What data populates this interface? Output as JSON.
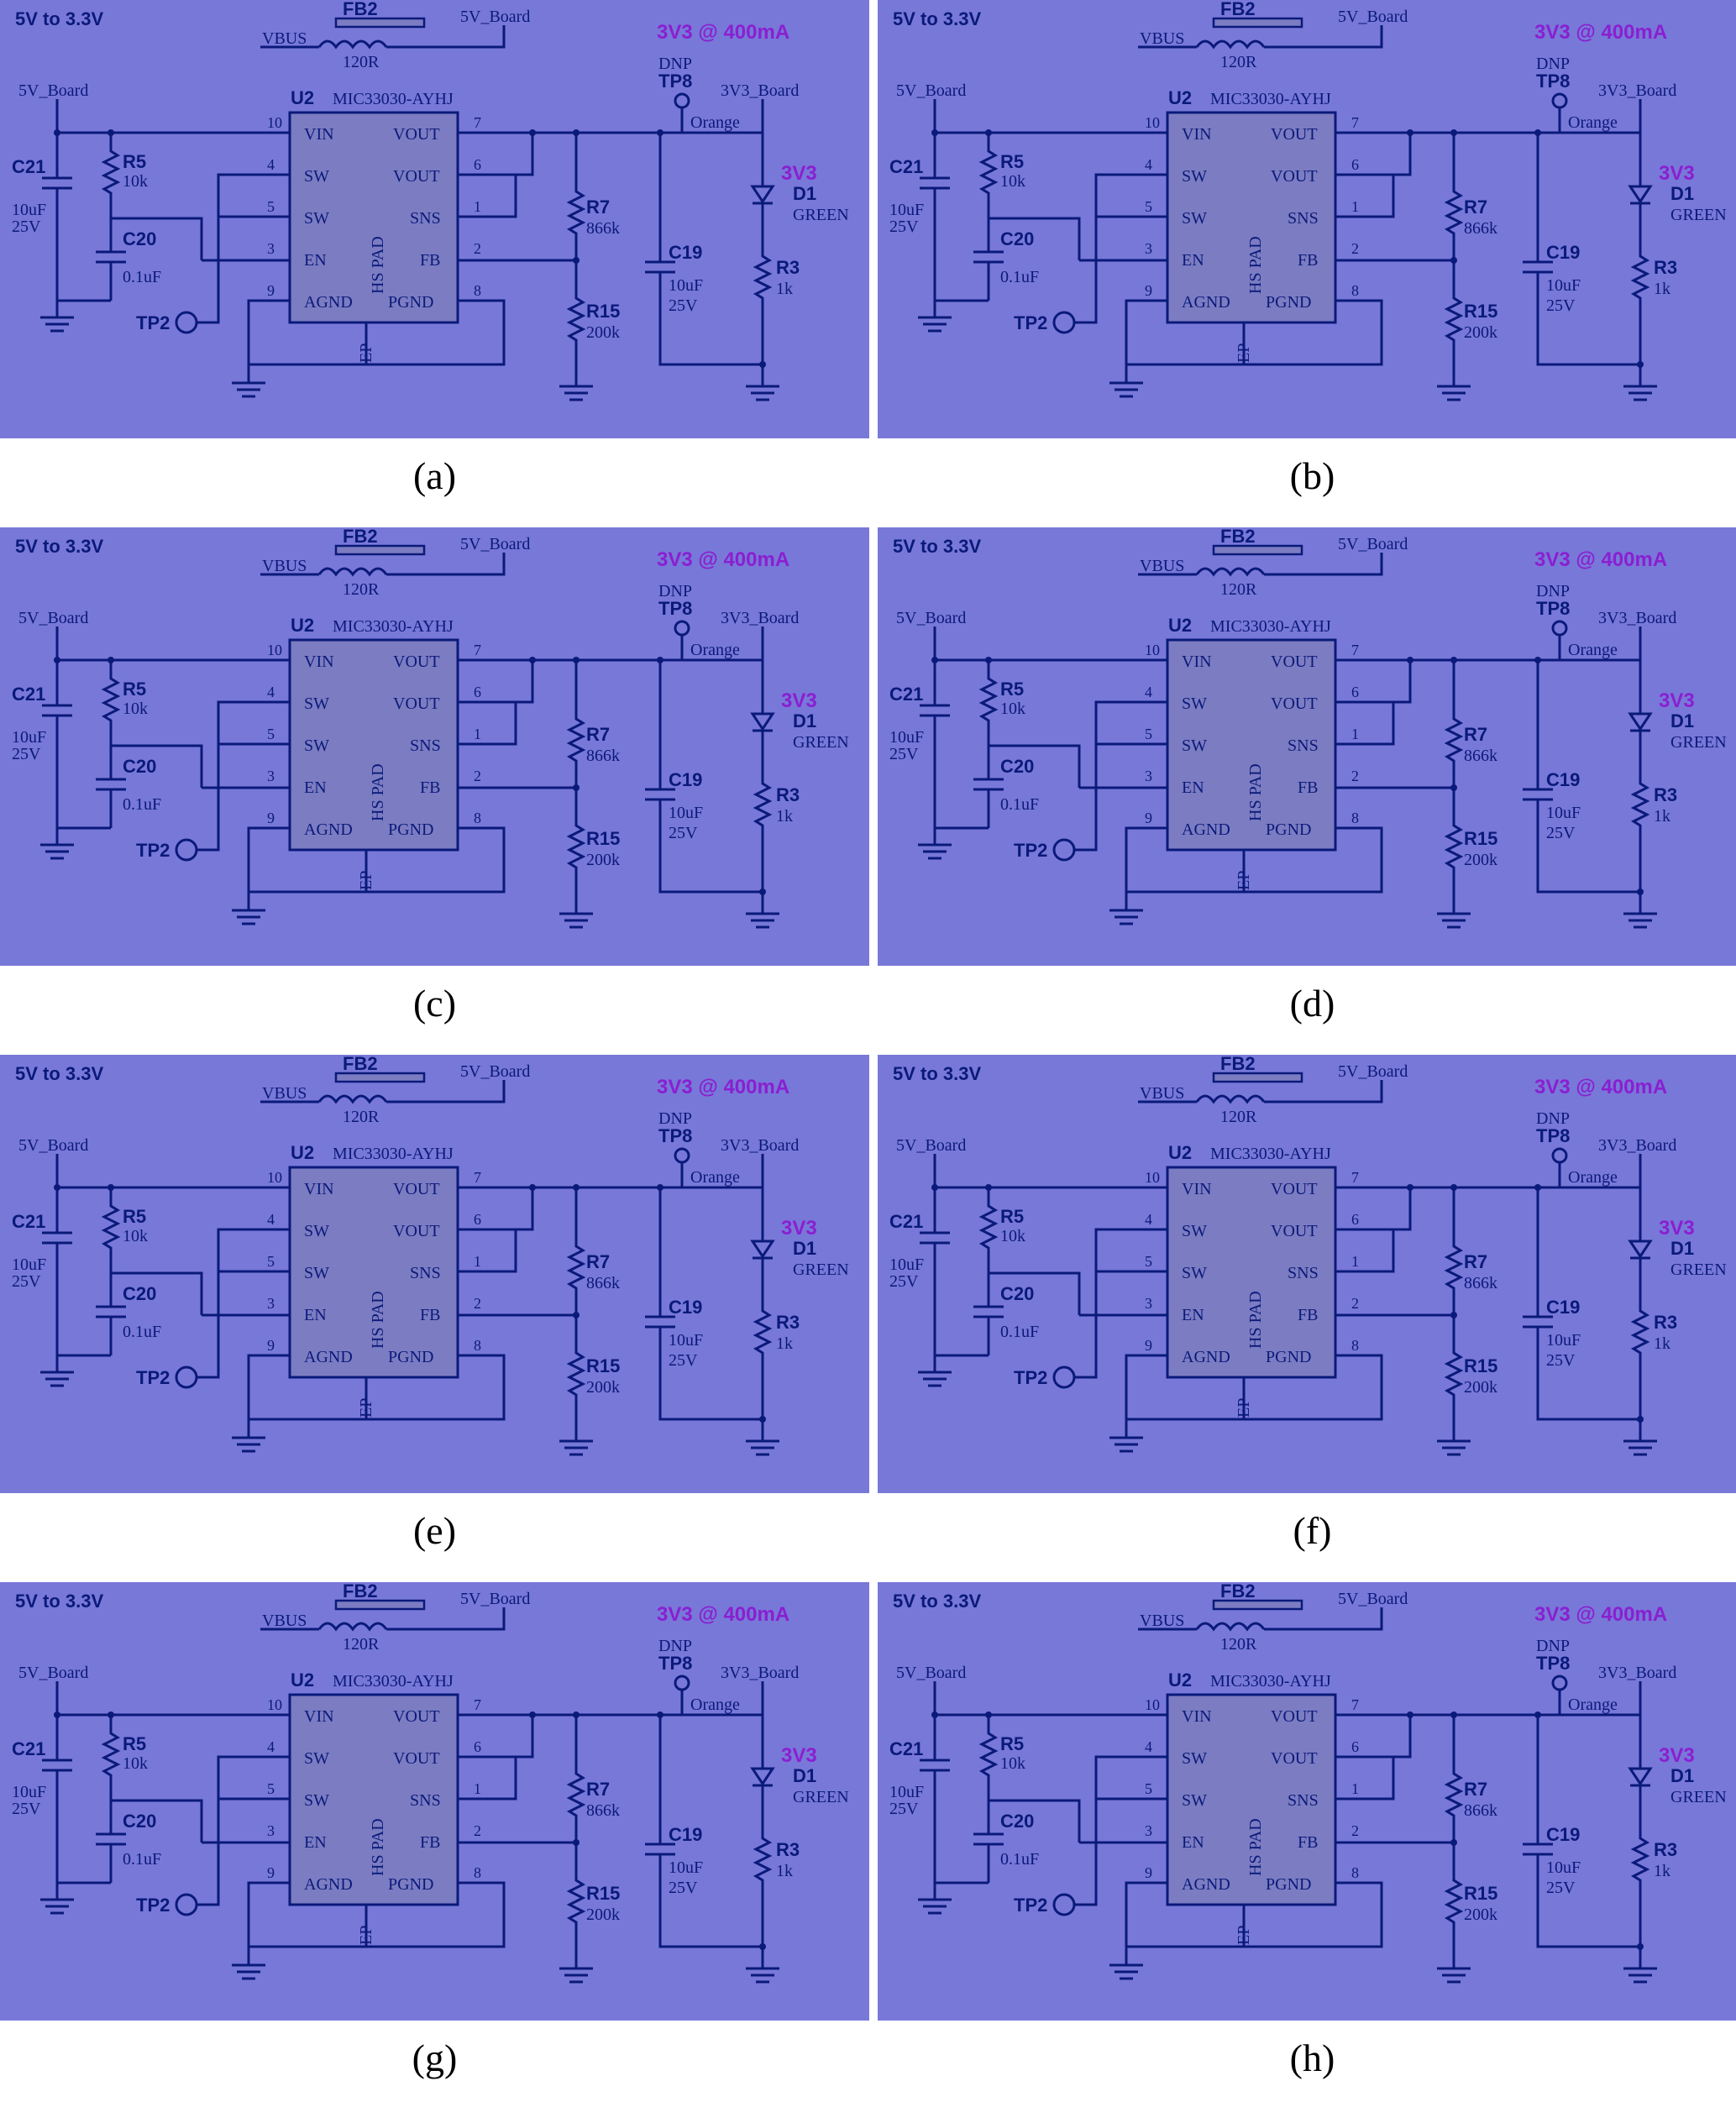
{
  "colors": {
    "background": "#7878d8",
    "wire": "#0a1a7a",
    "ic_fill": "#7c7cc2",
    "power_label": "#8a1fd1"
  },
  "panels": [
    {
      "caption": "(a)"
    },
    {
      "caption": "(b)"
    },
    {
      "caption": "(c)"
    },
    {
      "caption": "(d)"
    },
    {
      "caption": "(e)"
    },
    {
      "caption": "(f)"
    },
    {
      "caption": "(g)"
    },
    {
      "caption": "(h)"
    }
  ],
  "schematic": {
    "title": "5V to 3.3V",
    "fb": {
      "ref": "FB2",
      "in": "VBUS",
      "value": "120R",
      "out": "5V_Board"
    },
    "power_label": "3V3 @ 400mA",
    "net_in": "5V_Board",
    "net_out": "3V3_Board",
    "ic": {
      "ref": "U2",
      "part": "MIC33030-AYHJ",
      "pad": "HS PAD",
      "ep": "EP",
      "pins_left": [
        {
          "num": "10",
          "name": "VIN"
        },
        {
          "num": "4",
          "name": "SW"
        },
        {
          "num": "5",
          "name": "SW"
        },
        {
          "num": "3",
          "name": "EN"
        },
        {
          "num": "9",
          "name": "AGND"
        }
      ],
      "pins_right": [
        {
          "num": "7",
          "name": "VOUT"
        },
        {
          "num": "6",
          "name": "VOUT"
        },
        {
          "num": "1",
          "name": "SNS"
        },
        {
          "num": "2",
          "name": "FB"
        },
        {
          "num": "8",
          "name": "PGND"
        }
      ]
    },
    "c21": {
      "ref": "C21",
      "value": "10uF",
      "voltage": "25V"
    },
    "r5": {
      "ref": "R5",
      "value": "10k"
    },
    "c20": {
      "ref": "C20",
      "value": "0.1uF"
    },
    "tp2": "TP2",
    "r7": {
      "ref": "R7",
      "value": "866k"
    },
    "r15": {
      "ref": "R15",
      "value": "200k"
    },
    "c19": {
      "ref": "C19",
      "value": "10uF",
      "voltage": "25V"
    },
    "tp8": {
      "dnp": "DNP",
      "ref": "TP8",
      "color": "Orange"
    },
    "d1": {
      "label": "3V3",
      "ref": "D1",
      "color": "GREEN"
    },
    "r3": {
      "ref": "R3",
      "value": "1k"
    }
  }
}
